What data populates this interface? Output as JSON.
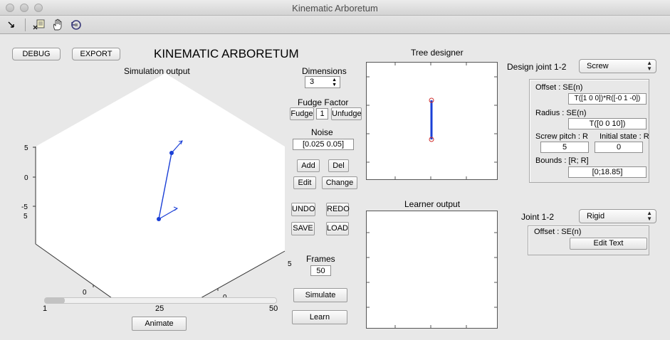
{
  "window": {
    "title": "Kinematic Arboretum"
  },
  "toolbar": {
    "icons": [
      "arrow-icon",
      "data-cursor-icon",
      "pan-hand-icon",
      "rotate-3d-icon"
    ]
  },
  "header": {
    "debug_label": "DEBUG",
    "export_label": "EXPORT",
    "app_title": "KINEMATIC ARBORETUM"
  },
  "simulation": {
    "title": "Simulation output",
    "axis_ticks": {
      "z": [
        "5",
        "0",
        "-5"
      ],
      "left": [
        "5",
        "0"
      ],
      "right": [
        "5",
        "0"
      ]
    },
    "slider": {
      "min_label": "1",
      "mid_label": "25",
      "max_label": "50",
      "value_fraction": 0.0
    },
    "animate_label": "Animate"
  },
  "controls": {
    "dimensions_label": "Dimensions",
    "dimensions_value": "3",
    "fudge_title": "Fudge Factor",
    "fudge_label": "Fudge",
    "fudge_value": "1",
    "unfudge_label": "Unfudge",
    "noise_label": "Noise",
    "noise_value": "[0.025 0.05]",
    "add_label": "Add",
    "del_label": "Del",
    "edit_label": "Edit",
    "change_label": "Change",
    "undo_label": "UNDO",
    "redo_label": "REDO",
    "save_label": "SAVE",
    "load_label": "LOAD",
    "frames_label": "Frames",
    "frames_value": "50",
    "simulate_label": "Simulate",
    "learn_label": "Learn"
  },
  "tree_designer": {
    "title": "Tree designer"
  },
  "learner": {
    "title": "Learner output"
  },
  "design_joint": {
    "title": "Design joint 1-2",
    "type_value": "Screw",
    "offset_label": "Offset : SE(n)",
    "offset_value": "T([1 0 0])*R([-0 1 -0])",
    "radius_label": "Radius : SE(n)",
    "radius_value": "T([0 0 10])",
    "pitch_label": "Screw pitch : R",
    "pitch_value": "5",
    "initial_label": "Initial state : R",
    "initial_value": "0",
    "bounds_label": "Bounds : [R; R]",
    "bounds_value": "[0;18.85]"
  },
  "joint": {
    "title": "Joint 1-2",
    "type_value": "Rigid",
    "offset_label": "Offset : SE(n)",
    "edit_text_label": "Edit Text"
  },
  "colors": {
    "link": "#1a3fd6",
    "node": "#1a3fd6"
  }
}
